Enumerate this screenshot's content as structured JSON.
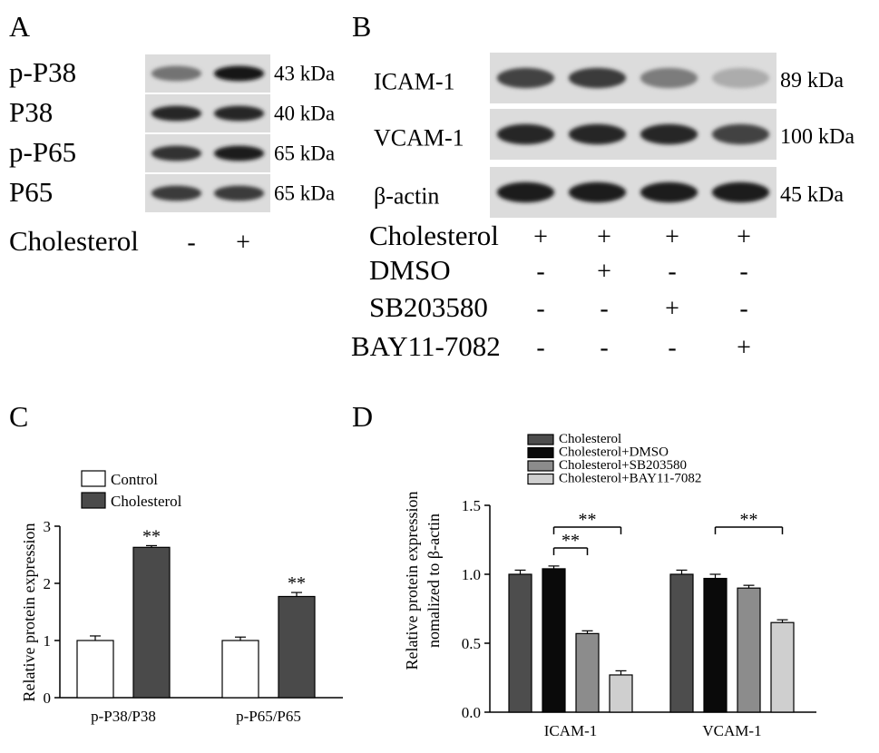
{
  "panels": {
    "A": {
      "letter": "A",
      "rows": [
        {
          "label": "p-P38",
          "kda": "43 kDa"
        },
        {
          "label": "P38",
          "kda": "40 kDa"
        },
        {
          "label": "p-P65",
          "kda": "65 kDa"
        },
        {
          "label": "P65",
          "kda": "65 kDa"
        }
      ],
      "treatment": {
        "label": "Cholesterol",
        "signs": [
          "-",
          "+"
        ]
      },
      "bands": [
        [
          0.45,
          0.95
        ],
        [
          0.85,
          0.85
        ],
        [
          0.8,
          0.9
        ],
        [
          0.75,
          0.75
        ]
      ]
    },
    "B": {
      "letter": "B",
      "rows": [
        {
          "label": "ICAM-1",
          "kda": "89 kDa"
        },
        {
          "label": "VCAM-1",
          "kda": "100 kDa"
        },
        {
          "label": "β-actin",
          "kda": "45 kDa"
        }
      ],
      "treatments": [
        {
          "label": "Cholesterol",
          "signs": [
            "+",
            "+",
            "+",
            "+"
          ]
        },
        {
          "label": "DMSO",
          "signs": [
            "-",
            "+",
            "-",
            "-"
          ]
        },
        {
          "label": "SB203580",
          "signs": [
            "-",
            "-",
            "+",
            "-"
          ]
        },
        {
          "label": "BAY11-7082",
          "signs": [
            "-",
            "-",
            "-",
            "+"
          ]
        }
      ],
      "bands": [
        [
          0.7,
          0.75,
          0.4,
          0.15
        ],
        [
          0.85,
          0.85,
          0.85,
          0.7
        ],
        [
          0.9,
          0.9,
          0.9,
          0.9
        ]
      ]
    },
    "C": {
      "letter": "C"
    },
    "D": {
      "letter": "D"
    }
  },
  "chart_data": [
    {
      "type": "bar",
      "panel": "C",
      "title": "",
      "xlabel": "",
      "ylabel": "Relative protein expression",
      "categories": [
        "p-P38/P38",
        "p-P65/P65"
      ],
      "series": [
        {
          "name": "Control",
          "values": [
            1.0,
            1.0
          ],
          "errors": [
            0.08,
            0.06
          ],
          "color": "#ffffff"
        },
        {
          "name": "Cholesterol",
          "values": [
            2.63,
            1.77
          ],
          "errors": [
            0.03,
            0.07
          ],
          "color": "#4a4a4a"
        }
      ],
      "ylim": [
        0,
        3
      ],
      "yticks": [
        "0",
        "1",
        "2",
        "3"
      ],
      "significance": [
        {
          "category": 0,
          "series": 1,
          "text": "**"
        },
        {
          "category": 1,
          "series": 1,
          "text": "**"
        }
      ],
      "legend": "top-left"
    },
    {
      "type": "bar",
      "panel": "D",
      "title": "",
      "xlabel": "",
      "ylabel": "Relative protein expression",
      "ylabel2": "nomalized to β-actin",
      "categories": [
        "ICAM-1",
        "VCAM-1"
      ],
      "series": [
        {
          "name": "Cholesterol",
          "values": [
            1.0,
            1.0
          ],
          "errors": [
            0.03,
            0.03
          ],
          "color": "#4d4d4d"
        },
        {
          "name": "Cholesterol+DMSO",
          "values": [
            1.04,
            0.97
          ],
          "errors": [
            0.02,
            0.03
          ],
          "color": "#0a0a0a"
        },
        {
          "name": "Cholesterol+SB203580",
          "values": [
            0.57,
            0.9
          ],
          "errors": [
            0.02,
            0.02
          ],
          "color": "#8c8c8c"
        },
        {
          "name": "Cholesterol+BAY11-7082",
          "values": [
            0.27,
            0.65
          ],
          "errors": [
            0.03,
            0.02
          ],
          "color": "#cfcfcf"
        }
      ],
      "ylim": [
        0,
        1.5
      ],
      "yticks": [
        "0.0",
        "0.5",
        "1.0",
        "1.5"
      ],
      "significance": [
        {
          "category": 0,
          "from": 1,
          "to": 3,
          "text": "**"
        },
        {
          "category": 0,
          "from": 1,
          "to": 2,
          "text": "**"
        },
        {
          "category": 1,
          "from": 1,
          "to": 3,
          "text": "**"
        }
      ],
      "legend": "top"
    }
  ]
}
